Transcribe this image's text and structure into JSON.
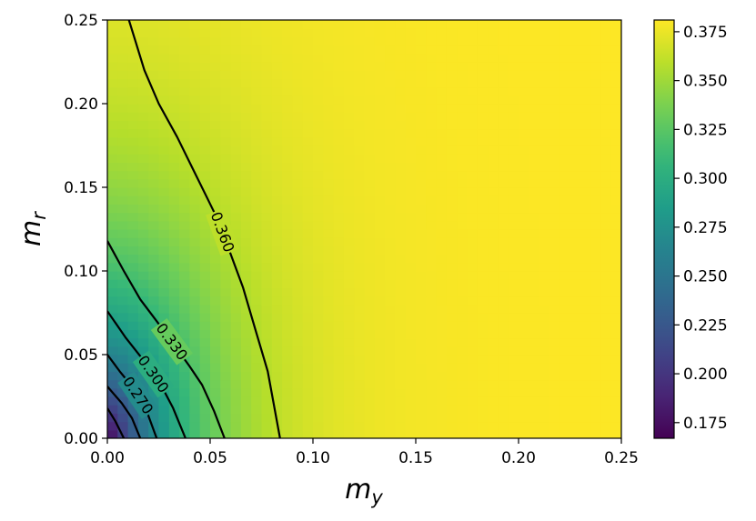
{
  "chart_data": {
    "type": "heatmap",
    "title": "",
    "xlabel": "m",
    "xlabel_subscript": "y",
    "ylabel": "m",
    "ylabel_subscript": "r",
    "xlim": [
      0,
      0.25
    ],
    "ylim": [
      0,
      0.25
    ],
    "x_ticks": [
      "0.00",
      "0.05",
      "0.10",
      "0.15",
      "0.20",
      "0.25"
    ],
    "y_ticks": [
      "0.00",
      "0.05",
      "0.10",
      "0.15",
      "0.20",
      "0.25"
    ],
    "x_tick_values": [
      0,
      0.05,
      0.1,
      0.15,
      0.2,
      0.25
    ],
    "y_tick_values": [
      0,
      0.05,
      0.1,
      0.15,
      0.2,
      0.25
    ],
    "colormap": "viridis",
    "color_range": [
      0.167,
      0.381
    ],
    "colorbar_ticks": [
      "0.175",
      "0.200",
      "0.225",
      "0.250",
      "0.275",
      "0.300",
      "0.325",
      "0.350",
      "0.375"
    ],
    "colorbar_tick_values": [
      0.175,
      0.2,
      0.225,
      0.25,
      0.275,
      0.3,
      0.325,
      0.35,
      0.375
    ],
    "grid": false,
    "contours": [
      {
        "level": 0.36,
        "label": "0.360",
        "points": [
          [
            0.0105,
            0.25
          ],
          [
            0.013,
            0.24
          ],
          [
            0.018,
            0.22
          ],
          [
            0.025,
            0.2
          ],
          [
            0.034,
            0.18
          ],
          [
            0.042,
            0.16
          ],
          [
            0.048,
            0.145
          ],
          [
            0.054,
            0.13
          ],
          [
            0.06,
            0.11
          ],
          [
            0.066,
            0.09
          ],
          [
            0.072,
            0.065
          ],
          [
            0.078,
            0.04
          ],
          [
            0.084,
            0.0
          ]
        ]
      },
      {
        "level": 0.33,
        "label": "0.330",
        "points": [
          [
            0.0,
            0.118
          ],
          [
            0.008,
            0.1
          ],
          [
            0.016,
            0.083
          ],
          [
            0.024,
            0.07
          ],
          [
            0.033,
            0.055
          ],
          [
            0.04,
            0.043
          ],
          [
            0.046,
            0.032
          ],
          [
            0.052,
            0.016
          ],
          [
            0.057,
            0.0
          ]
        ]
      },
      {
        "level": 0.3,
        "label": "0.300",
        "points": [
          [
            0.0,
            0.076
          ],
          [
            0.009,
            0.06
          ],
          [
            0.018,
            0.046
          ],
          [
            0.026,
            0.032
          ],
          [
            0.032,
            0.018
          ],
          [
            0.038,
            0.0
          ]
        ]
      },
      {
        "level": 0.27,
        "label": "0.270",
        "points": [
          [
            0.0,
            0.05
          ],
          [
            0.006,
            0.04
          ],
          [
            0.012,
            0.031
          ],
          [
            0.018,
            0.02
          ],
          [
            0.024,
            0.0
          ]
        ]
      },
      {
        "level": 0.24,
        "points": [
          [
            0.0,
            0.031
          ],
          [
            0.007,
            0.021
          ],
          [
            0.012,
            0.012
          ],
          [
            0.016,
            0.0
          ]
        ]
      },
      {
        "level": 0.21,
        "points": [
          [
            0.0,
            0.018
          ],
          [
            0.004,
            0.01
          ],
          [
            0.008,
            0.0
          ]
        ]
      }
    ]
  }
}
